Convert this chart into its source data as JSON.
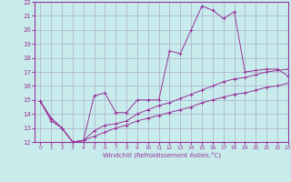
{
  "xlabel": "Windchill (Refroidissement éolien,°C)",
  "x_ticks": [
    0,
    1,
    2,
    3,
    4,
    5,
    6,
    7,
    8,
    9,
    10,
    11,
    12,
    13,
    14,
    15,
    16,
    17,
    18,
    19,
    20,
    21,
    22,
    23
  ],
  "ylim": [
    12,
    22
  ],
  "xlim": [
    -0.5,
    23
  ],
  "y_ticks": [
    12,
    13,
    14,
    15,
    16,
    17,
    18,
    19,
    20,
    21,
    22
  ],
  "bg_color": "#c8ecec",
  "grid_color": "#aaaacc",
  "line_color": "#993399",
  "curve1_x": [
    0,
    1,
    2,
    3,
    4,
    5,
    6,
    7,
    8,
    9,
    10,
    11,
    12,
    13,
    14,
    15,
    16,
    17,
    18,
    19,
    20,
    21,
    22,
    23
  ],
  "curve1_y": [
    14.9,
    13.7,
    13.0,
    12.0,
    12.1,
    15.3,
    15.5,
    14.1,
    14.1,
    15.0,
    15.0,
    15.0,
    18.5,
    18.3,
    20.0,
    21.7,
    21.4,
    20.8,
    21.3,
    17.0,
    17.1,
    17.2,
    17.2,
    16.7
  ],
  "curve2_x": [
    0,
    1,
    2,
    3,
    4,
    5,
    6,
    7,
    8,
    9,
    10,
    11,
    12,
    13,
    14,
    15,
    16,
    17,
    18,
    19,
    20,
    21,
    22,
    23
  ],
  "curve2_y": [
    14.9,
    13.7,
    13.0,
    12.0,
    12.1,
    12.8,
    13.2,
    13.3,
    13.5,
    14.0,
    14.3,
    14.6,
    14.8,
    15.1,
    15.4,
    15.7,
    16.0,
    16.3,
    16.5,
    16.6,
    16.8,
    17.0,
    17.1,
    17.2
  ],
  "curve3_x": [
    0,
    1,
    2,
    3,
    4,
    5,
    6,
    7,
    8,
    9,
    10,
    11,
    12,
    13,
    14,
    15,
    16,
    17,
    18,
    19,
    20,
    21,
    22,
    23
  ],
  "curve3_y": [
    14.9,
    13.5,
    13.0,
    12.0,
    12.1,
    12.4,
    12.7,
    13.0,
    13.2,
    13.5,
    13.7,
    13.9,
    14.1,
    14.3,
    14.5,
    14.8,
    15.0,
    15.2,
    15.4,
    15.5,
    15.7,
    15.9,
    16.0,
    16.2
  ]
}
